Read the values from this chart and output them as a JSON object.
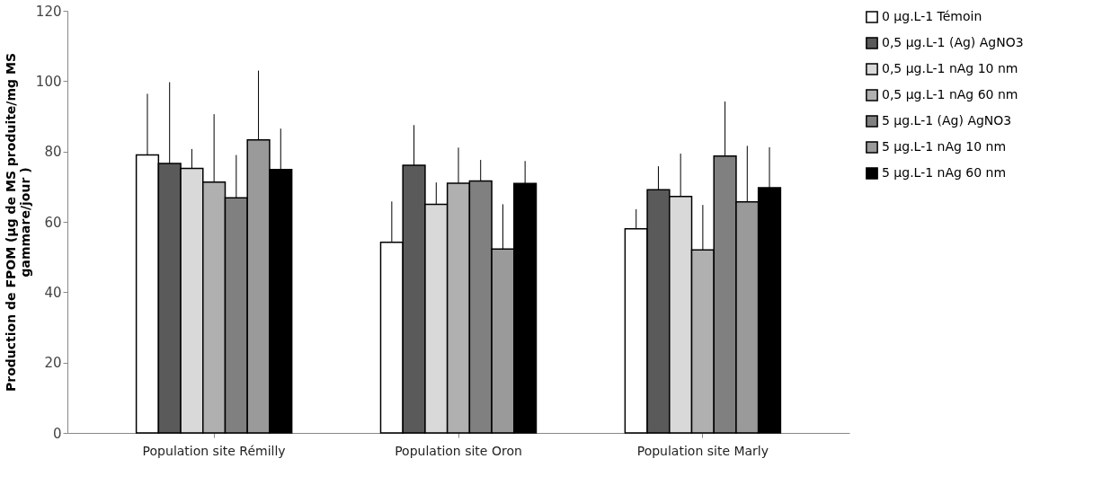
{
  "chart_data": {
    "type": "bar",
    "ylabel": "Production de FPOM (µg de MS produite/mg MS gammare/jour )",
    "categories": [
      "Population site Rémilly",
      "Population site Oron",
      "Population site Marly"
    ],
    "series": [
      {
        "name": "0 µg.L-1 Témoin",
        "color": "#ffffff",
        "values": [
          79.0,
          54.2,
          58.0
        ],
        "errors": [
          [
            79.0,
            96.4
          ],
          [
            54.2,
            65.8
          ],
          [
            58.0,
            63.6
          ]
        ]
      },
      {
        "name": "0,5 µg.L-1 (Ag) AgNO3",
        "color": "#5a5a5a",
        "values": [
          76.6,
          76.1,
          69.1
        ],
        "errors": [
          [
            76.6,
            99.7
          ],
          [
            76.1,
            87.5
          ],
          [
            69.1,
            75.8
          ]
        ]
      },
      {
        "name": "0,5 µg.L-1 nAg 10 nm",
        "color": "#d9d9d9",
        "values": [
          75.2,
          65.0,
          67.2
        ],
        "errors": [
          [
            75.2,
            80.7
          ],
          [
            65.0,
            71.2
          ],
          [
            67.2,
            79.4
          ]
        ]
      },
      {
        "name": "0,5 µg.L-1 nAg 60 nm",
        "color": "#b0b0b0",
        "values": [
          71.3,
          71.0,
          52.0
        ],
        "errors": [
          [
            71.3,
            90.6
          ],
          [
            71.0,
            81.1
          ],
          [
            52.0,
            64.8
          ]
        ]
      },
      {
        "name": "5 µg.L-1 (Ag) AgNO3",
        "color": "#808080",
        "values": [
          66.8,
          71.6,
          78.7
        ],
        "errors": [
          [
            66.8,
            79.0
          ],
          [
            71.6,
            77.6
          ],
          [
            78.7,
            94.2
          ]
        ]
      },
      {
        "name": "5 µg.L-1 nAg 10 nm",
        "color": "#9a9a9a",
        "values": [
          83.3,
          52.3,
          65.7
        ],
        "errors": [
          [
            83.3,
            103.0
          ],
          [
            52.3,
            65.0
          ],
          [
            65.7,
            81.6
          ]
        ]
      },
      {
        "name": "5 µg.L-1 nAg 60 nm",
        "color": "#000000",
        "values": [
          74.9,
          70.9,
          69.7
        ],
        "errors": [
          [
            74.9,
            86.5
          ],
          [
            70.9,
            77.3
          ],
          [
            69.7,
            81.2
          ]
        ]
      }
    ],
    "ylim": [
      0,
      120
    ],
    "yticks": [
      0,
      20,
      40,
      60,
      80,
      100,
      120
    ],
    "grid": false,
    "legend": "right"
  }
}
